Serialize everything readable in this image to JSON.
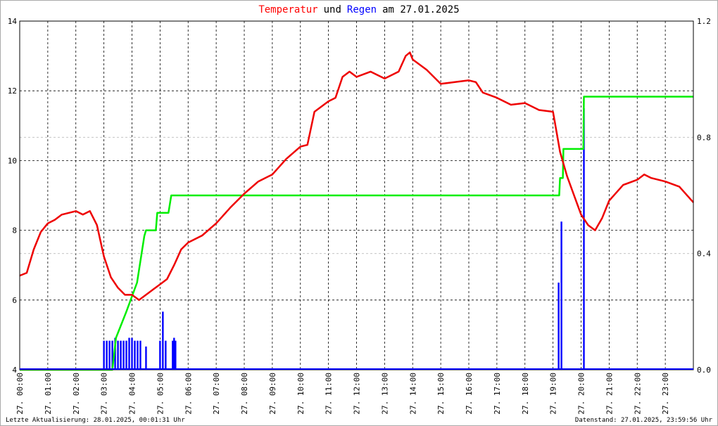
{
  "chart_data": {
    "type": "line",
    "title": [
      {
        "text": "Temperatur",
        "color": "#ff0000"
      },
      {
        "text": "und",
        "color": "#000000"
      },
      {
        "text": "Regen",
        "color": "#0000ff"
      },
      {
        "text": "am 27.01.2025",
        "color": "#000000"
      }
    ],
    "xlim": [
      0,
      24
    ],
    "xticks": [
      {
        "value": 0,
        "label": "27. 00:00"
      },
      {
        "value": 1,
        "label": "27. 01:00"
      },
      {
        "value": 2,
        "label": "27. 02:00"
      },
      {
        "value": 3,
        "label": "27. 03:00"
      },
      {
        "value": 4,
        "label": "27. 04:00"
      },
      {
        "value": 5,
        "label": "27. 05:00"
      },
      {
        "value": 6,
        "label": "27. 06:00"
      },
      {
        "value": 7,
        "label": "27. 07:00"
      },
      {
        "value": 8,
        "label": "27. 08:00"
      },
      {
        "value": 9,
        "label": "27. 09:00"
      },
      {
        "value": 10,
        "label": "27. 10:00"
      },
      {
        "value": 11,
        "label": "27. 11:00"
      },
      {
        "value": 12,
        "label": "27. 12:00"
      },
      {
        "value": 13,
        "label": "27. 13:00"
      },
      {
        "value": 14,
        "label": "27. 14:00"
      },
      {
        "value": 15,
        "label": "27. 15:00"
      },
      {
        "value": 16,
        "label": "27. 16:00"
      },
      {
        "value": 17,
        "label": "27. 17:00"
      },
      {
        "value": 18,
        "label": "27. 18:00"
      },
      {
        "value": 19,
        "label": "27. 19:00"
      },
      {
        "value": 20,
        "label": "27. 20:00"
      },
      {
        "value": 21,
        "label": "27. 21:00"
      },
      {
        "value": 22,
        "label": "27. 22:00"
      },
      {
        "value": 23,
        "label": "27. 23:00"
      }
    ],
    "ylim": [
      4,
      14
    ],
    "yticks": [
      4,
      6,
      8,
      10,
      12,
      14
    ],
    "y2lim": [
      0,
      1.2
    ],
    "y2ticks": [
      {
        "value": 0,
        "label": "0.0"
      },
      0.4,
      0.8,
      1.2
    ],
    "grid": true,
    "series": [
      {
        "type": "bar",
        "color": "#0000ff",
        "axis": "y2",
        "x": [
          3.0,
          3.1,
          3.2,
          3.3,
          3.4,
          3.5,
          3.6,
          3.7,
          3.8,
          3.9,
          4.0,
          4.1,
          4.2,
          4.3,
          4.5,
          5.0,
          5.1,
          5.2,
          5.45,
          5.5,
          5.55,
          19.2,
          19.3,
          20.1
        ],
        "values": [
          0.1,
          0.1,
          0.1,
          0.1,
          0.11,
          0.1,
          0.1,
          0.1,
          0.1,
          0.11,
          0.11,
          0.1,
          0.1,
          0.1,
          0.08,
          0.1,
          0.2,
          0.1,
          0.1,
          0.11,
          0.1,
          0.3,
          0.51,
          0.9
        ]
      },
      {
        "type": "line",
        "color": "#00ee00",
        "axis": "y2",
        "x": [
          0,
          3.3,
          3.43,
          3.8,
          4.18,
          4.44,
          4.5,
          4.85,
          4.9,
          5.3,
          5.4,
          19.22,
          19.25,
          19.35,
          19.37,
          20.08,
          20.1,
          24
        ],
        "values": [
          0,
          0,
          0.11,
          0.2,
          0.3,
          0.46,
          0.48,
          0.48,
          0.54,
          0.54,
          0.6,
          0.6,
          0.66,
          0.66,
          0.76,
          0.76,
          0.94,
          0.94
        ]
      },
      {
        "type": "line",
        "color": "#ee0000",
        "axis": "y",
        "x": [
          0,
          0.25,
          0.5,
          0.75,
          1,
          1.25,
          1.5,
          2,
          2.25,
          2.5,
          2.75,
          3,
          3.25,
          3.5,
          3.75,
          4,
          4.25,
          4.5,
          4.75,
          5,
          5.25,
          5.5,
          5.75,
          6,
          6.5,
          7,
          7.5,
          8,
          8.5,
          9,
          9.5,
          10,
          10.25,
          10.5,
          11,
          11.25,
          11.5,
          11.75,
          12,
          12.5,
          13,
          13.5,
          13.75,
          13.9,
          14,
          14.5,
          15,
          15.5,
          16,
          16.25,
          16.5,
          17,
          17.5,
          18,
          18.5,
          19,
          19.25,
          19.5,
          20,
          20.25,
          20.5,
          20.75,
          21,
          21.5,
          22,
          22.25,
          22.5,
          23,
          23.5,
          24
        ],
        "values": [
          6.7,
          6.78,
          7.45,
          7.95,
          8.2,
          8.3,
          8.45,
          8.55,
          8.45,
          8.55,
          8.15,
          7.25,
          6.65,
          6.35,
          6.15,
          6.15,
          6.0,
          6.15,
          6.3,
          6.45,
          6.6,
          7.0,
          7.45,
          7.65,
          7.85,
          8.2,
          8.65,
          9.05,
          9.4,
          9.6,
          10.05,
          10.4,
          10.45,
          11.4,
          11.7,
          11.8,
          12.4,
          12.55,
          12.4,
          12.55,
          12.35,
          12.55,
          13.0,
          13.1,
          12.9,
          12.6,
          12.2,
          12.25,
          12.3,
          12.25,
          11.95,
          11.8,
          11.6,
          11.65,
          11.45,
          11.4,
          10.25,
          9.55,
          8.45,
          8.15,
          8.0,
          8.35,
          8.85,
          9.3,
          9.45,
          9.6,
          9.5,
          9.4,
          9.25,
          8.8
        ]
      }
    ],
    "footer_left": "Letzte Aktualisierung: 28.01.2025, 00:01:31 Uhr",
    "footer_right": "Datenstand: 27.01.2025, 23:59:56 Uhr"
  }
}
